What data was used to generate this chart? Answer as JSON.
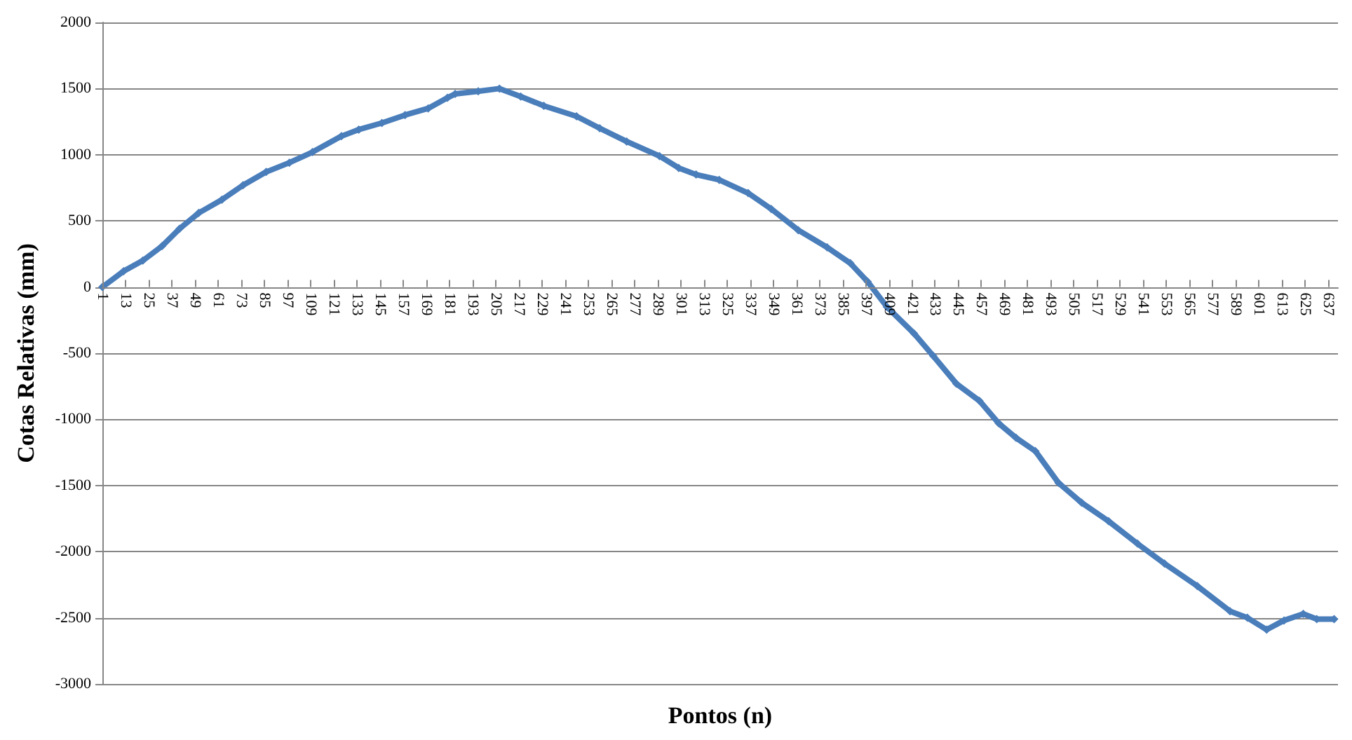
{
  "chart_data": {
    "type": "line",
    "xlabel": "Pontos (n)",
    "ylabel": "Cotas Relativas (mm)",
    "xlim": [
      1,
      642
    ],
    "xticks": [
      1,
      13,
      25,
      37,
      49,
      61,
      73,
      85,
      97,
      109,
      121,
      133,
      145,
      157,
      169,
      181,
      193,
      205,
      217,
      229,
      241,
      253,
      265,
      277,
      289,
      301,
      313,
      325,
      337,
      349,
      361,
      373,
      385,
      397,
      409,
      421,
      433,
      445,
      457,
      469,
      481,
      493,
      505,
      517,
      529,
      541,
      553,
      565,
      577,
      589,
      601,
      613,
      625,
      637
    ],
    "ylim": [
      -3000,
      2000
    ],
    "yticks": [
      -3000,
      -2500,
      -2000,
      -1500,
      -1000,
      -500,
      0,
      500,
      1000,
      1500,
      2000
    ],
    "grid": "y",
    "marker": "diamond",
    "line_style": "solid",
    "series": [
      {
        "color": "#4a7ebb",
        "x": [
          1,
          12,
          22,
          32,
          41,
          51,
          63,
          74,
          86,
          98,
          110,
          125,
          134,
          146,
          158,
          170,
          180,
          184,
          196,
          207,
          218,
          230,
          247,
          259,
          273,
          290,
          300,
          309,
          321,
          336,
          348,
          362,
          377,
          389,
          398,
          408,
          422,
          432,
          444,
          456,
          466,
          475,
          485,
          497,
          509,
          523,
          538,
          552,
          569,
          586,
          595,
          605,
          614,
          624,
          631,
          640
        ],
        "values": [
          0,
          120,
          200,
          310,
          440,
          560,
          660,
          770,
          870,
          940,
          1020,
          1140,
          1190,
          1240,
          1300,
          1350,
          1430,
          1460,
          1480,
          1500,
          1440,
          1370,
          1290,
          1200,
          1100,
          990,
          900,
          850,
          810,
          710,
          590,
          430,
          300,
          180,
          40,
          -150,
          -350,
          -520,
          -730,
          -860,
          -1030,
          -1140,
          -1240,
          -1480,
          -1630,
          -1770,
          -1940,
          -2090,
          -2260,
          -2450,
          -2500,
          -2590,
          -2520,
          -2470,
          -2510,
          -2510
        ]
      }
    ]
  }
}
